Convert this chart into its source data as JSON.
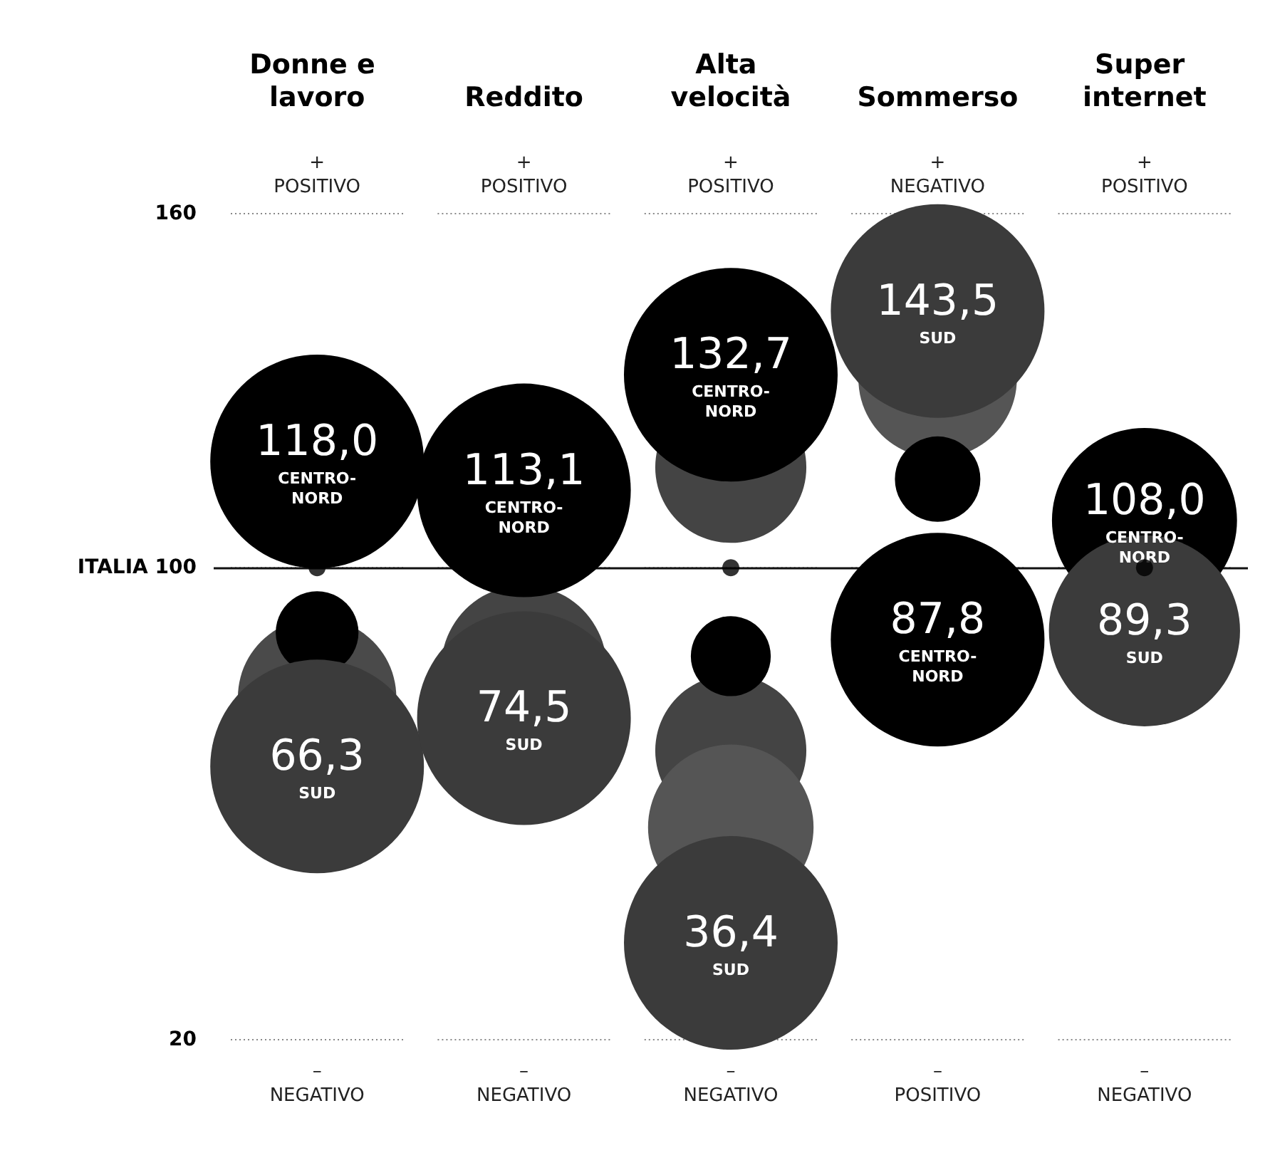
{
  "chart_data": {
    "type": "bubble",
    "categories": [
      "Donne e lavoro",
      "Reddito",
      "Alta velocità",
      "Sommerso",
      "Super internet"
    ],
    "ylim": [
      20,
      160
    ],
    "yticks": [
      20,
      {
        "value": 100,
        "label": "ITALIA 100"
      },
      160
    ],
    "grid": "y",
    "line_style": "dotted",
    "ref_lines": [
      {
        "axis": "y",
        "value": 100,
        "color": "#111111"
      }
    ],
    "annotations": [
      "+ POSITIVO",
      "+ POSITIVO",
      "+ POSITIVO",
      "+ NEGATIVO",
      "+ POSITIVO",
      "– NEGATIVO",
      "– NEGATIVO",
      "– NEGATIVO",
      "– POSITIVO",
      "– NEGATIVO"
    ],
    "series": [
      {
        "type": "scatter",
        "marker": "circle",
        "color": "#000000",
        "values": [
          100,
          null,
          100,
          null,
          100
        ]
      },
      {
        "x": [
          "Donne e lavoro",
          "Reddito",
          "Alta velocità",
          "Alta velocità",
          "Alta velocità",
          "Sommerso"
        ],
        "values": [
          78,
          83,
          117,
          69,
          56,
          132
        ],
        "sizes": [
          0.55,
          0.6,
          0.5,
          0.5,
          0.6,
          0.55
        ],
        "colors": [
          "#4a4a4a",
          "#444444",
          "#444444",
          "#444444",
          "#555555",
          "#555555"
        ]
      },
      {
        "color": "#000000",
        "x": [
          "Donne e lavoro",
          "Alta velocità",
          "Sommerso"
        ],
        "values": [
          89,
          85,
          115
        ],
        "sizes": [
          0.15,
          0.14,
          0.16
        ]
      },
      {
        "name": "CENTRO-NORD",
        "color": "#000000",
        "values": [
          118.0,
          113.1,
          132.7,
          87.8,
          108.0
        ],
        "sizes": [
          1,
          1,
          1,
          1,
          0.75
        ],
        "value_labels": [
          "118,0",
          "113,1",
          "132,7",
          "87,8",
          "108,0"
        ]
      },
      {
        "name": "SUD",
        "color": "#3b3b3b",
        "values": [
          66.3,
          74.5,
          36.4,
          143.5,
          89.3
        ],
        "sizes": [
          1,
          1,
          1,
          1,
          0.8
        ],
        "value_labels": [
          "66,3",
          "74,5",
          "36,4",
          "143,5",
          "89,3"
        ]
      }
    ]
  }
}
